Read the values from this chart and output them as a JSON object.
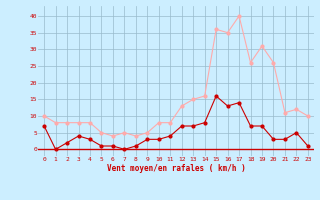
{
  "hours": [
    0,
    1,
    2,
    3,
    4,
    5,
    6,
    7,
    8,
    9,
    10,
    11,
    12,
    13,
    14,
    15,
    16,
    17,
    18,
    19,
    20,
    21,
    22,
    23
  ],
  "wind_avg": [
    7,
    0,
    2,
    4,
    3,
    1,
    1,
    0,
    1,
    3,
    3,
    4,
    7,
    7,
    8,
    16,
    13,
    14,
    7,
    7,
    3,
    3,
    5,
    1
  ],
  "wind_gust": [
    10,
    8,
    8,
    8,
    8,
    5,
    4,
    5,
    4,
    5,
    8,
    8,
    13,
    15,
    16,
    36,
    35,
    40,
    26,
    31,
    26,
    11,
    12,
    10
  ],
  "ylim": [
    -2,
    43
  ],
  "xlim": [
    -0.5,
    23.5
  ],
  "line_avg_color": "#cc0000",
  "line_gust_color": "#ffaaaa",
  "bg_color": "#cceeff",
  "grid_color": "#99bbcc",
  "xlabel": "Vent moyen/en rafales ( km/h )",
  "xlabel_color": "#cc0000",
  "tick_color": "#cc0000",
  "yticks": [
    0,
    5,
    10,
    15,
    20,
    25,
    30,
    35,
    40
  ],
  "xticks": [
    0,
    1,
    2,
    3,
    4,
    5,
    6,
    7,
    8,
    9,
    10,
    11,
    12,
    13,
    14,
    15,
    16,
    17,
    18,
    19,
    20,
    21,
    22,
    23
  ]
}
